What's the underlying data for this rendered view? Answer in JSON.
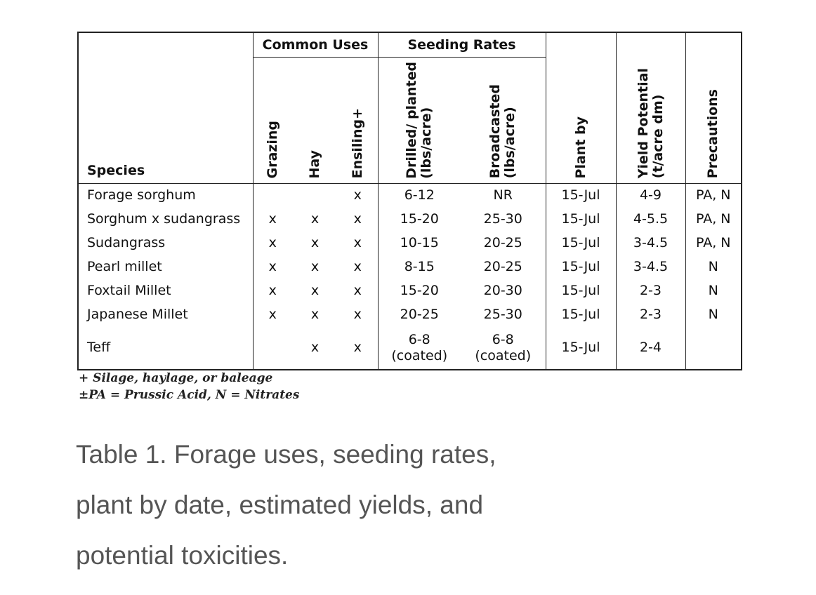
{
  "table": {
    "group_headers": {
      "common_uses": "Common Uses",
      "seeding_rates": "Seeding Rates"
    },
    "columns": {
      "species": "Species",
      "grazing": "Grazing",
      "hay": "Hay",
      "ensiling": "Ensiling+",
      "drilled_1": "Drilled/ planted",
      "drilled_2": "(lbs/acre)",
      "broadcasted_1": "Broadcasted",
      "broadcasted_2": "(lbs/acre)",
      "plant_by": "Plant by",
      "yield_1": "Yield Potential",
      "yield_2": "(t/acre dm)",
      "precautions": "Precautions"
    },
    "rows": [
      {
        "species": "Forage sorghum",
        "grazing": "",
        "hay": "",
        "ensiling": "x",
        "drilled": "6-12",
        "broadcasted": "NR",
        "plant_by": "15-Jul",
        "yield": "4-9",
        "precautions": "PA, N"
      },
      {
        "species": "Sorghum x sudangrass",
        "grazing": "x",
        "hay": "x",
        "ensiling": "x",
        "drilled": "15-20",
        "broadcasted": "25-30",
        "plant_by": "15-Jul",
        "yield": "4-5.5",
        "precautions": "PA, N"
      },
      {
        "species": "Sudangrass",
        "grazing": "x",
        "hay": "x",
        "ensiling": "x",
        "drilled": "10-15",
        "broadcasted": "20-25",
        "plant_by": "15-Jul",
        "yield": "3-4.5",
        "precautions": "PA, N"
      },
      {
        "species": "Pearl millet",
        "grazing": "x",
        "hay": "x",
        "ensiling": "x",
        "drilled": "8-15",
        "broadcasted": "20-25",
        "plant_by": "15-Jul",
        "yield": "3-4.5",
        "precautions": "N"
      },
      {
        "species": "Foxtail Millet",
        "grazing": "x",
        "hay": "x",
        "ensiling": "x",
        "drilled": "15-20",
        "broadcasted": "20-30",
        "plant_by": "15-Jul",
        "yield": "2-3",
        "precautions": "N"
      },
      {
        "species": "Japanese Millet",
        "grazing": "x",
        "hay": "x",
        "ensiling": "x",
        "drilled": "20-25",
        "broadcasted": "25-30",
        "plant_by": "15-Jul",
        "yield": "2-3",
        "precautions": "N"
      },
      {
        "species": "Teff",
        "grazing": "",
        "hay": "x",
        "ensiling": "x",
        "drilled": "6-8",
        "drilled_note": "(coated)",
        "broadcasted": "6-8",
        "broadcasted_note": "(coated)",
        "plant_by": "15-Jul",
        "yield": "2-4",
        "precautions": ""
      }
    ]
  },
  "footnotes": [
    "+ Silage, haylage, or baleage",
    "±PA = Prussic Acid, N = Nitrates"
  ],
  "caption": {
    "line1": "Table 1. Forage uses, seeding rates,",
    "line2": "plant by date, estimated yields, and",
    "line3": "potential toxicities."
  }
}
